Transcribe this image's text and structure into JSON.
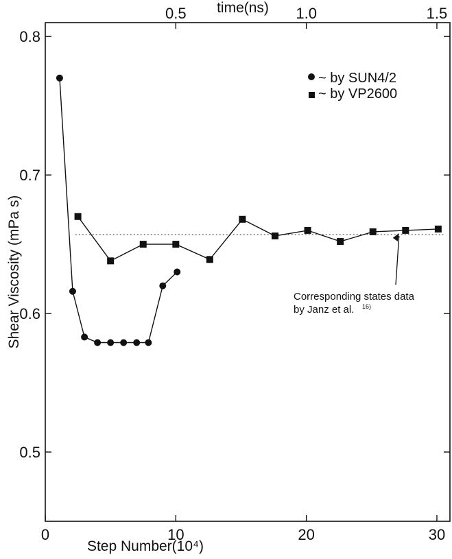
{
  "chart_data": {
    "type": "line",
    "xlabel": "Step Number(10⁴)",
    "ylabel": "Shear Viscosity (mPa s)",
    "top_axis_title": "time(ns)",
    "xlim": [
      0,
      31
    ],
    "ylim": [
      0.45,
      0.81
    ],
    "x_ticks": [
      0,
      10,
      20,
      30
    ],
    "y_ticks": [
      0.5,
      0.6,
      0.7,
      0.8
    ],
    "x_tick_labels": [
      "0",
      "10",
      "20",
      "30"
    ],
    "y_tick_labels": [
      "0.5",
      "0.6",
      "0.7",
      "0.8"
    ],
    "top_axis_ticks": [
      {
        "x": 10,
        "label": "0.5"
      },
      {
        "x": 20,
        "label": "1.0"
      },
      {
        "x": 30,
        "label": "1.5"
      }
    ],
    "series": [
      {
        "name": "~ by SUN4/2",
        "marker": "circle",
        "x": [
          1.1,
          2.1,
          3.0,
          4.0,
          5.0,
          6.0,
          7.0,
          7.9,
          9.0,
          10.1
        ],
        "y": [
          0.77,
          0.616,
          0.583,
          0.579,
          0.579,
          0.579,
          0.579,
          0.579,
          0.62,
          0.63
        ]
      },
      {
        "name": "~ by VP2600",
        "marker": "square",
        "x": [
          2.5,
          5.0,
          7.5,
          10.0,
          12.6,
          15.1,
          17.6,
          20.1,
          22.6,
          25.1,
          27.6,
          30.1
        ],
        "y": [
          0.67,
          0.638,
          0.65,
          0.65,
          0.639,
          0.668,
          0.656,
          0.66,
          0.652,
          0.659,
          0.66,
          0.661
        ]
      }
    ],
    "reference_line": {
      "y": 0.657,
      "style": "dotted"
    },
    "annotation": {
      "line1": "Corresponding states data",
      "line2": "by Janz et al.",
      "superscript": "16)",
      "arrow_to": {
        "x": 27.1,
        "y": 0.659
      }
    },
    "legend_position": "top-right",
    "grid": false
  }
}
